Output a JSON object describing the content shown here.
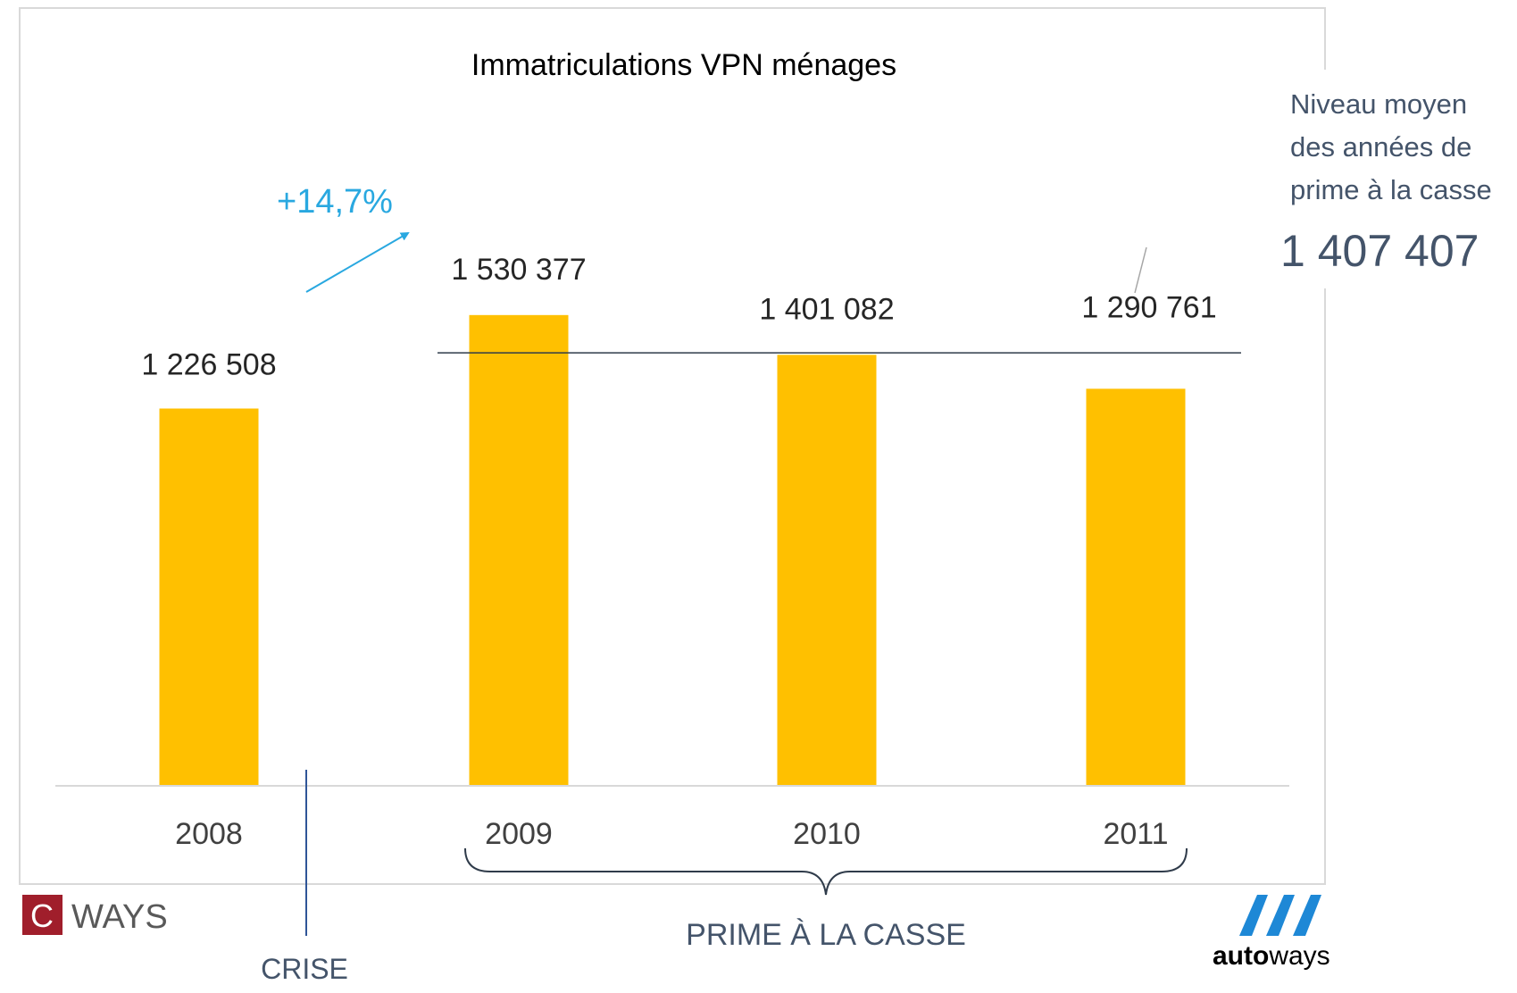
{
  "chart_data": {
    "type": "bar",
    "title": "Immatriculations VPN ménages",
    "categories": [
      "2008",
      "2009",
      "2010",
      "2011"
    ],
    "values": [
      1226508,
      1530377,
      1401082,
      1290761
    ],
    "value_labels": [
      "1 226 508",
      "1 530 377",
      "1 401 082",
      "1 290 761"
    ],
    "xlabel": "",
    "ylabel": "",
    "ylim": [
      0,
      1700000
    ],
    "grid": false,
    "legend": "none",
    "bar_color": "#FFC000",
    "reference_line": {
      "value": 1407407,
      "label_lines": [
        "Niveau moyen",
        "des années de",
        "prime à la casse"
      ],
      "value_label": "1 407 407"
    },
    "annotations": {
      "growth": "+14,7%",
      "crise": "CRISE",
      "prime": "PRIME À LA CASSE"
    }
  },
  "logos": {
    "cways": {
      "letter": "C",
      "text": "WAYS"
    },
    "autoways": {
      "text_bold": "auto",
      "text_light": "ways"
    }
  },
  "colors": {
    "bar": "#FFC000",
    "accent_blue": "#29A8E0",
    "label_blue": "#44546A",
    "dark_text": "#262626",
    "cways_red": "#A01E2B",
    "autoways_blue": "#1E88D6"
  }
}
